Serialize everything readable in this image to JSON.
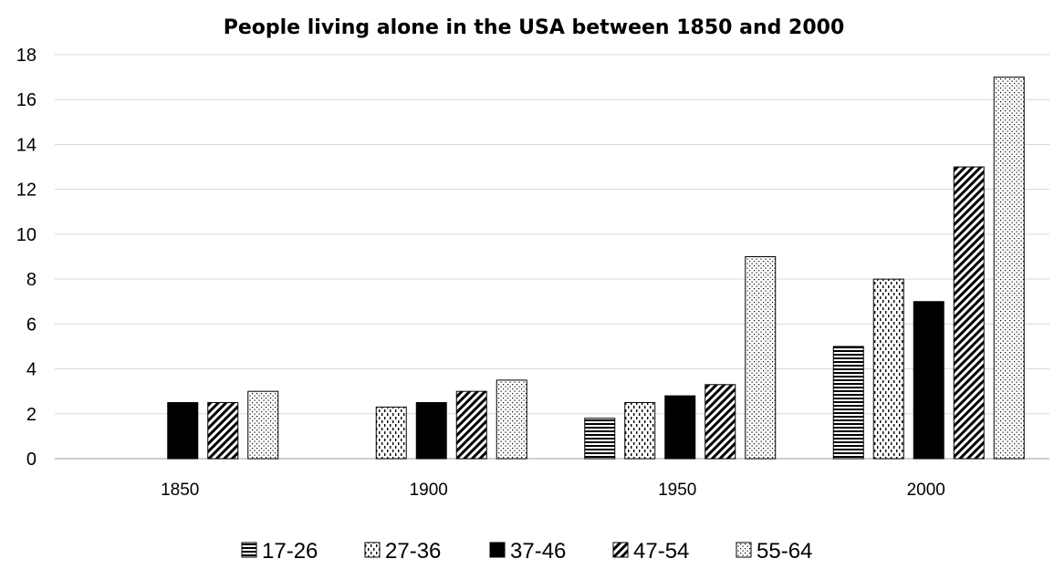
{
  "chart_data": {
    "type": "bar",
    "title": "People living alone in the USA between 1850 and 2000",
    "xlabel": "",
    "ylabel": "",
    "categories": [
      "1850",
      "1900",
      "1950",
      "2000"
    ],
    "ylim": [
      0,
      18
    ],
    "yticks": [
      0,
      2,
      4,
      6,
      8,
      10,
      12,
      14,
      16,
      18
    ],
    "grid": true,
    "legend_position": "bottom",
    "series": [
      {
        "name": "17-26",
        "pattern": "horizontal-lines",
        "values": [
          null,
          null,
          1.8,
          5
        ]
      },
      {
        "name": "27-36",
        "pattern": "dashes",
        "values": [
          null,
          2.3,
          2.5,
          8
        ]
      },
      {
        "name": "37-46",
        "pattern": "solid-black",
        "values": [
          2.5,
          2.5,
          2.8,
          7
        ]
      },
      {
        "name": "47-54",
        "pattern": "diagonal-lines",
        "values": [
          2.5,
          3,
          3.3,
          13
        ]
      },
      {
        "name": "55-64",
        "pattern": "dots",
        "values": [
          3,
          3.5,
          9,
          17
        ]
      }
    ],
    "colors": {
      "bar_fill": "#000000",
      "bar_stroke": "#000000",
      "grid": "#d9d9d9",
      "axis": "#bfbfbf"
    }
  }
}
